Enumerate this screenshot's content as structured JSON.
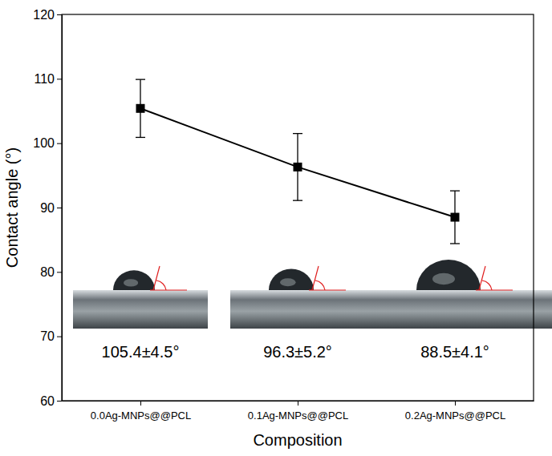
{
  "chart_data": {
    "type": "line",
    "x_label": "Composition",
    "y_label": "Contact angle (°)",
    "categories": [
      "0.0Ag-MNPs@@PCL",
      "0.1Ag-MNPs@@PCL",
      "0.2Ag-MNPs@@PCL"
    ],
    "values": [
      105.4,
      96.3,
      88.5
    ],
    "errors": [
      4.5,
      5.2,
      4.1
    ],
    "annotations": [
      "105.4±4.5°",
      "96.3±5.2°",
      "88.5±4.1°"
    ],
    "color": "#000000",
    "marker": "square",
    "line_style": "solid",
    "ylim": [
      60,
      120
    ],
    "yticks": [
      60,
      70,
      80,
      90,
      100,
      110,
      120
    ],
    "grid": false
  }
}
